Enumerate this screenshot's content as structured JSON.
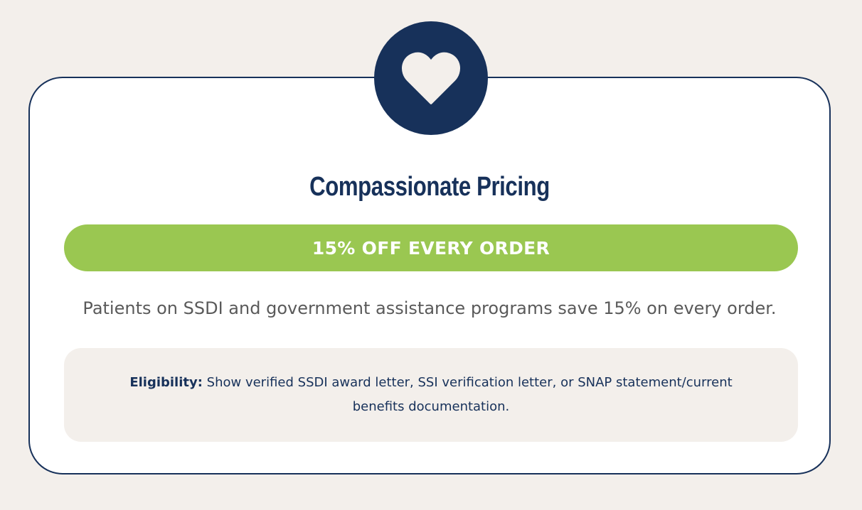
{
  "badge": {
    "icon": "heart-icon",
    "background_color": "#17315a",
    "icon_color": "#f3efeb"
  },
  "card": {
    "title": "Compassionate Pricing",
    "offer": "15% OFF EVERY ORDER",
    "offer_color": "#9ac751",
    "description": "Patients on SSDI and government assistance programs save 15% on every order.",
    "eligibility": {
      "label": "Eligibility:",
      "text": " Show verified SSDI award letter, SSI verification letter, or SNAP statement/current benefits documentation."
    }
  },
  "colors": {
    "brand_navy": "#17315a",
    "page_background": "#f3efeb",
    "accent_green": "#9ac751"
  }
}
